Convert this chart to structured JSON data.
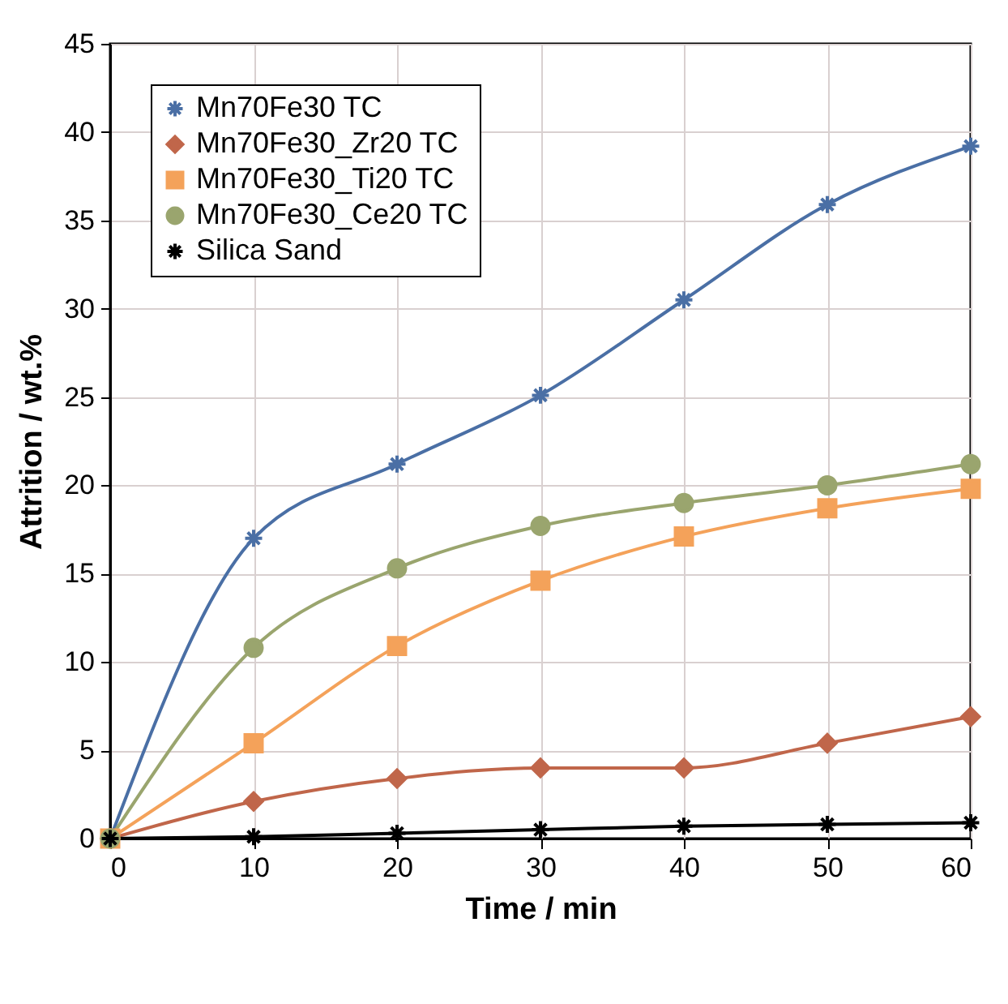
{
  "chart_data": {
    "type": "line",
    "xlabel": "Time / min",
    "ylabel": "Attrition / wt.%",
    "x": [
      0,
      10,
      20,
      30,
      40,
      50,
      60
    ],
    "xlim": [
      0,
      60
    ],
    "xticks": [
      0,
      10,
      20,
      30,
      40,
      50,
      60
    ],
    "ylim": [
      0,
      45
    ],
    "yticks": [
      0,
      5,
      10,
      15,
      20,
      25,
      30,
      35,
      40,
      45
    ],
    "grid": true,
    "legend": "top left",
    "series": [
      {
        "name": "Mn70Fe30 TC",
        "color": "#4a6fa5",
        "marker": "cross",
        "values": [
          0,
          17.0,
          21.2,
          25.1,
          30.5,
          35.9,
          39.2
        ]
      },
      {
        "name": "Mn70Fe30_Zr20 TC",
        "color": "#c0664a",
        "marker": "diamond",
        "values": [
          0,
          2.1,
          3.4,
          4.0,
          4.0,
          5.4,
          6.9
        ]
      },
      {
        "name": "Mn70Fe30_Ti20 TC",
        "color": "#f4a25a",
        "marker": "square",
        "values": [
          0,
          5.4,
          10.9,
          14.6,
          17.1,
          18.7,
          19.8
        ]
      },
      {
        "name": "Mn70Fe30_Ce20 TC",
        "color": "#9aa56e",
        "marker": "circle",
        "values": [
          0,
          10.8,
          15.3,
          17.7,
          19.0,
          20.0,
          21.2
        ]
      },
      {
        "name": "Silica Sand",
        "color": "#000000",
        "marker": "cross",
        "values": [
          0,
          0.1,
          0.3,
          0.5,
          0.7,
          0.8,
          0.9
        ]
      }
    ]
  }
}
